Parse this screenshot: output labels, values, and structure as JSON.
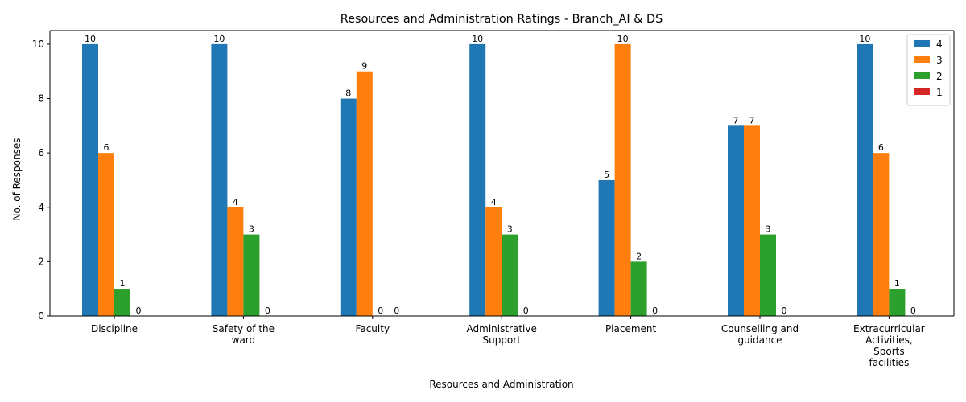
{
  "chart_data": {
    "type": "bar",
    "title": "Resources and Administration Ratings - Branch_AI & DS",
    "xlabel": "Resources and Administration",
    "ylabel": "No. of Responses",
    "ylim": [
      0,
      10.5
    ],
    "yticks": [
      0,
      2,
      4,
      6,
      8,
      10
    ],
    "grid": false,
    "legend_position": "top-right",
    "categories": [
      [
        "Discipline"
      ],
      [
        "Safety of the",
        "ward"
      ],
      [
        "Faculty"
      ],
      [
        "Administrative",
        "Support"
      ],
      [
        "Placement"
      ],
      [
        "Counselling and",
        "guidance"
      ],
      [
        "Extracurricular",
        "Activities,",
        "Sports",
        "facilities"
      ]
    ],
    "series": [
      {
        "name": "4",
        "color": "#1f77b4",
        "values": [
          10,
          10,
          8,
          10,
          5,
          7,
          10
        ],
        "labels": [
          "10",
          "10",
          "8",
          "10",
          "5",
          "7",
          "10"
        ]
      },
      {
        "name": "3",
        "color": "#ff7f0e",
        "values": [
          6,
          4,
          9,
          4,
          10,
          7,
          6
        ],
        "labels": [
          "6",
          "4",
          "9",
          "4",
          "10",
          "7",
          "6"
        ]
      },
      {
        "name": "2",
        "color": "#2ca02c",
        "values": [
          1,
          3,
          0,
          3,
          2,
          3,
          1
        ],
        "labels": [
          "1",
          "3",
          "0",
          "3",
          "2",
          "3",
          "1"
        ]
      },
      {
        "name": "1",
        "color": "#d62728",
        "values": [
          0,
          0,
          0,
          0,
          0,
          0,
          0
        ],
        "labels": [
          "0",
          "0",
          "0",
          "0",
          "0",
          "0",
          "0"
        ]
      }
    ]
  }
}
